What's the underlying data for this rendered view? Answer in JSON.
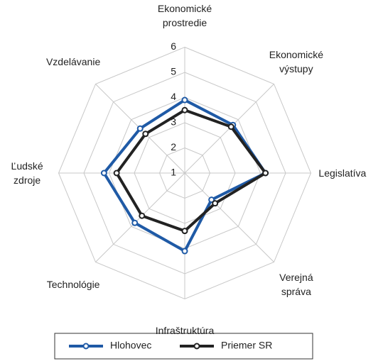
{
  "chart_data": {
    "type": "radar",
    "categories": [
      "Ekonomické prostredie",
      "Ekonomické výstupy",
      "Legislatíva",
      "Verejná správa",
      "Infraštruktúra",
      "Technológie",
      "Ľudské zdroje",
      "Vzdelávanie"
    ],
    "ylim": [
      1,
      6
    ],
    "yticks": [
      1,
      2,
      3,
      4,
      5,
      6
    ],
    "grid": true,
    "series": [
      {
        "name": "Hlohovec",
        "color": "#1f5aa6",
        "values": [
          3.9,
          3.7,
          4.2,
          2.5,
          4.1,
          3.8,
          4.2,
          3.5
        ]
      },
      {
        "name": "Priemer SR",
        "color": "#222222",
        "values": [
          3.5,
          3.6,
          4.2,
          2.7,
          3.3,
          3.4,
          3.7,
          3.2
        ]
      }
    ]
  }
}
